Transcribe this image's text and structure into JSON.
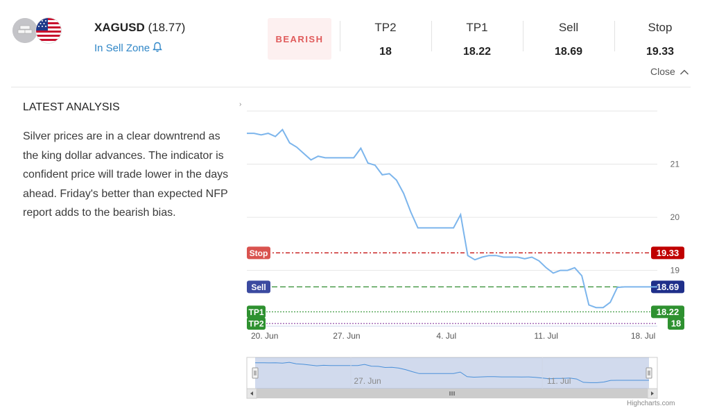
{
  "header": {
    "symbol": "XAGUSD",
    "price": "(18.77)",
    "zone": "In Sell Zone",
    "bias": "BEARISH",
    "close": "Close",
    "levels": [
      {
        "label": "TP2",
        "value": "18"
      },
      {
        "label": "TP1",
        "value": "18.22"
      },
      {
        "label": "Sell",
        "value": "18.69"
      },
      {
        "label": "Stop",
        "value": "19.33"
      }
    ]
  },
  "analysis": {
    "title": "LATEST ANALYSIS",
    "text": "Silver prices are in a clear downtrend as the king dollar advances. The indicator is confident price will trade lower in the days ahead. Friday's better than expected NFP report adds to the bearish bias."
  },
  "colors": {
    "accent": "#2f86c7",
    "bearish": "#e05a5a",
    "line": "#7cb5ec",
    "stop": "#c00000",
    "sell": "#1f2f8a",
    "tp": "#2e9130"
  },
  "credit": "Highcharts.com",
  "chart_data": {
    "type": "line",
    "series": [
      {
        "x": [
          0,
          0.5,
          1,
          1.5,
          2,
          2.5,
          3,
          3.5,
          4,
          4.5,
          5,
          5.5,
          6,
          6.5,
          7,
          7.5,
          8,
          8.5,
          9,
          9.5,
          10,
          10.5,
          11,
          11.5,
          12,
          12.5,
          13,
          13.5,
          14,
          14.5,
          15,
          15.5,
          16,
          16.5,
          17,
          17.5,
          18,
          18.5,
          19,
          19.5,
          20,
          20.5,
          21,
          21.5,
          22,
          22.5,
          23,
          23.5,
          24,
          24.5,
          25,
          25.5,
          26,
          26.5,
          27,
          27.5,
          28,
          28.5,
          28.8
        ],
        "values": [
          21.58,
          21.58,
          21.55,
          21.58,
          21.52,
          21.65,
          21.4,
          21.32,
          21.2,
          21.08,
          21.15,
          21.12,
          21.12,
          21.12,
          21.12,
          21.12,
          21.3,
          21.02,
          20.98,
          20.8,
          20.82,
          20.7,
          20.45,
          20.1,
          19.8,
          19.8,
          19.8,
          19.8,
          19.8,
          19.8,
          20.05,
          19.28,
          19.2,
          19.25,
          19.28,
          19.28,
          19.25,
          19.25,
          19.25,
          19.22,
          19.25,
          19.18,
          19.05,
          18.95,
          19.0,
          19.0,
          19.05,
          18.9,
          18.35,
          18.3,
          18.3,
          18.4,
          18.68,
          18.69,
          18.69,
          18.69,
          18.69,
          18.69,
          18.69
        ]
      }
    ],
    "x_ticks": [
      "20. Jun",
      "27. Jun",
      "4. Jul",
      "11. Jul",
      "18. Jul"
    ],
    "y_ticks": [
      "21",
      "20",
      "19"
    ],
    "plot_lines": [
      {
        "name": "Stop",
        "value": 19.33
      },
      {
        "name": "Sell",
        "value": 18.69
      },
      {
        "name": "TP1",
        "value": 18.22
      },
      {
        "name": "TP2",
        "value": 18
      }
    ],
    "navigator_label": [
      "27. Jun",
      "11. Jul"
    ],
    "ylim": [
      17.95,
      22.0
    ],
    "xlim": [
      0,
      28.8
    ],
    "grid": true
  }
}
